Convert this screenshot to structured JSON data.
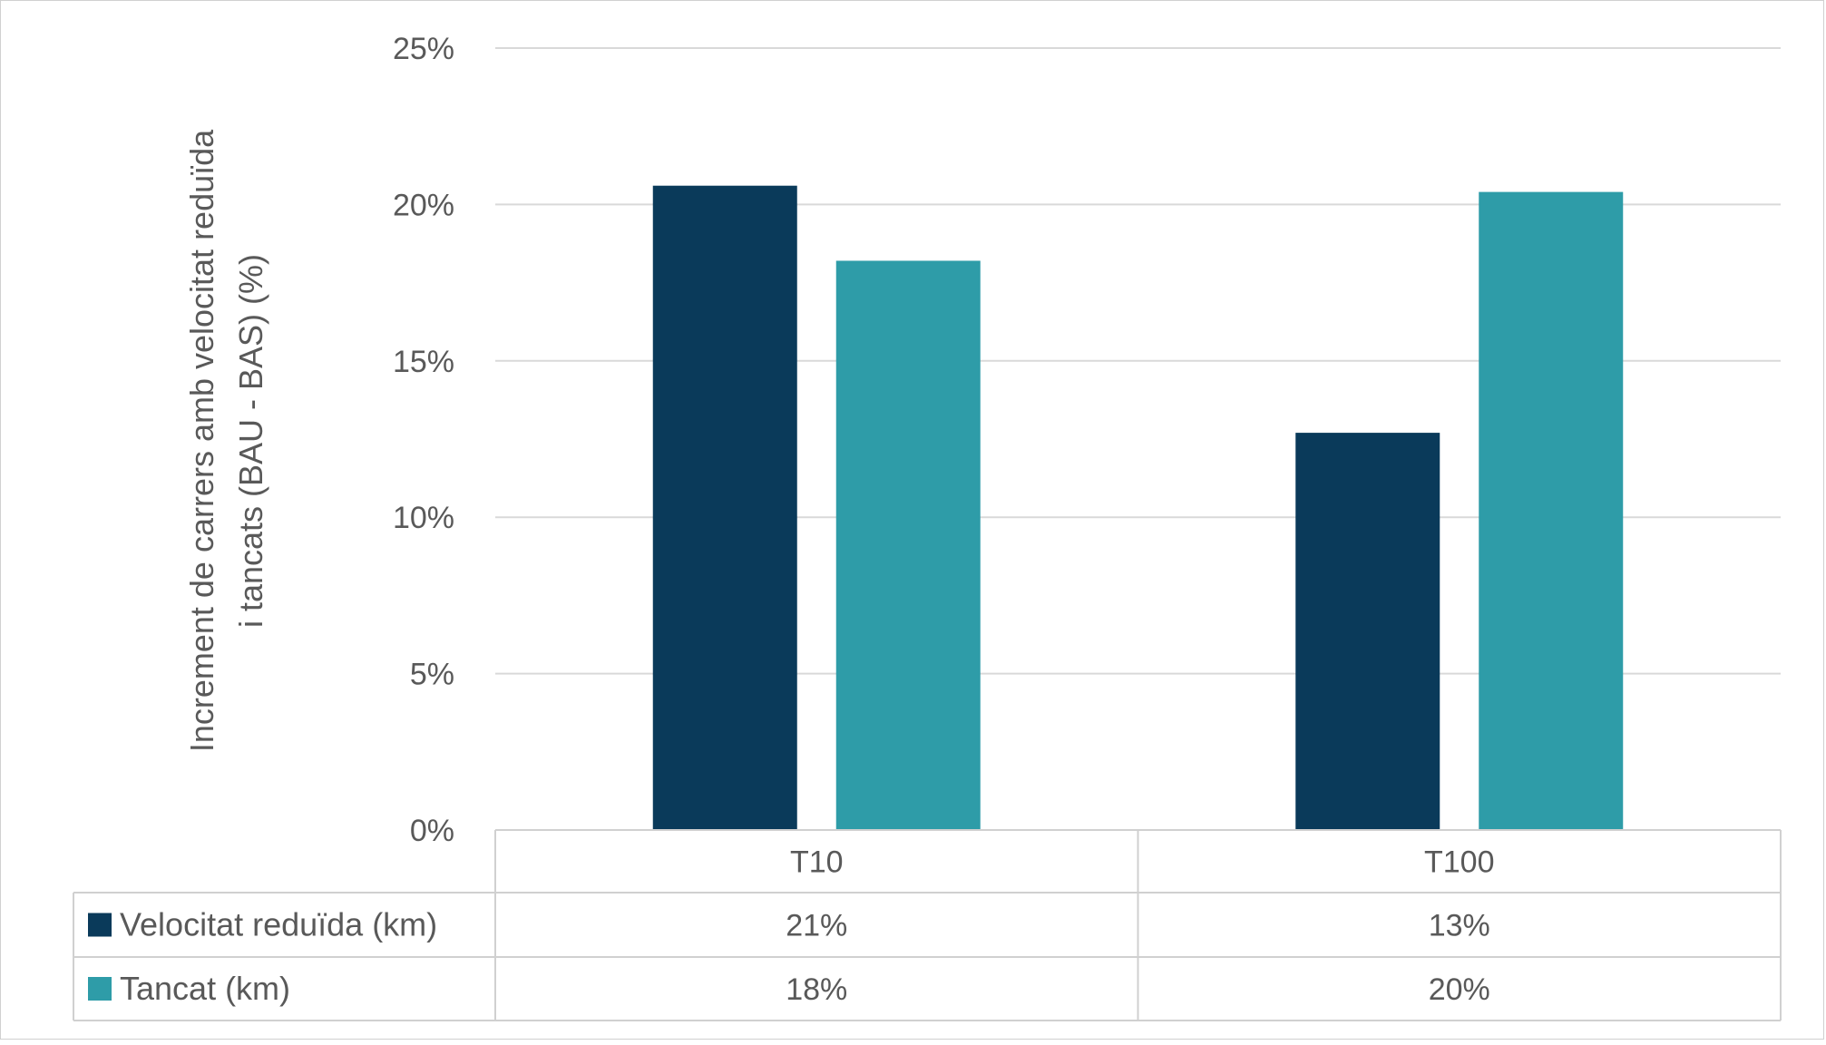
{
  "chart_data": {
    "type": "bar",
    "title": "",
    "ylabel_lines": [
      "Increment de carrers amb velocitat reduïda",
      "i tancats (BAU - BAS) (%)"
    ],
    "xlabel": "",
    "categories": [
      "T10",
      "T100"
    ],
    "ylim": [
      0,
      25
    ],
    "yticks": [
      0,
      5,
      10,
      15,
      20,
      25
    ],
    "ytick_labels": [
      "0%",
      "5%",
      "10%",
      "15%",
      "20%",
      "25%"
    ],
    "grid": true,
    "legend": "data-table",
    "series": [
      {
        "name": "Velocitat reduïda (km)",
        "color": "#0a3a5a",
        "values": [
          20.6,
          12.7
        ],
        "table_labels": [
          "21%",
          "13%"
        ]
      },
      {
        "name": "Tancat (km)",
        "color": "#2e9ca8",
        "values": [
          18.2,
          20.4
        ],
        "table_labels": [
          "18%",
          "20%"
        ]
      }
    ]
  }
}
